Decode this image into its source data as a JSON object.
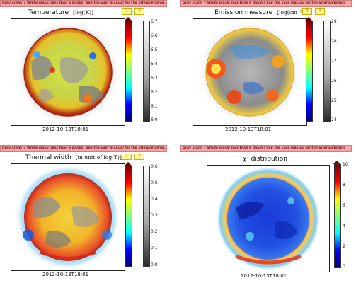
{
  "banner_text": "Gray scale: √  White mask: less than 6 bands! See the user manual for the interpretation.",
  "date": "2012-10-13T18:01",
  "tag_label": "?",
  "colors": {
    "banner_bg": "#f4a7a7",
    "tag_bg": "#fff59a",
    "jet_gradient": [
      "#000080",
      "#0000ff",
      "#00ffff",
      "#7fff7f",
      "#ffff00",
      "#ff0000",
      "#7f0000"
    ],
    "gray_gradient": [
      "#ffffff",
      "#a8a8a8",
      "#2a2a2a"
    ]
  },
  "panels": {
    "temperature": {
      "title": "Temperature",
      "unit": "[log(K)]",
      "ticks": [
        "6.7",
        "6.6",
        "6.5",
        "6.4",
        "6.3",
        "6.2",
        "6.1",
        "6.0"
      ]
    },
    "emission": {
      "title": "Emission measure",
      "unit": "[log(cm⁻⁵)]",
      "ticks": [
        "29",
        "28",
        "27",
        "26",
        "25",
        "24"
      ]
    },
    "thermal": {
      "title": "Thermal width",
      "unit": "[in unit of log(T)]",
      "ticks": [
        "0.6",
        "0.5",
        "0.4",
        "0.3",
        "0.2",
        "0.1",
        "0.0"
      ]
    },
    "chi2": {
      "title": "χ²  distribution",
      "unit": "",
      "ticks": [
        "10",
        "8",
        "6",
        "4",
        "2",
        "0"
      ]
    }
  },
  "chart_data": [
    {
      "type": "heatmap",
      "title": "Temperature [log(K)]",
      "colorbar_range": [
        6.0,
        6.7
      ],
      "colormap": "jet",
      "secondary_colorbar": "gray",
      "date": "2012-10-13T18:01"
    },
    {
      "type": "heatmap",
      "title": "Emission measure [log(cm⁻⁵)]",
      "colorbar_range": [
        24,
        29
      ],
      "colormap": "jet",
      "secondary_colorbar": "gray",
      "date": "2012-10-13T18:01"
    },
    {
      "type": "heatmap",
      "title": "Thermal width [in unit of log(T)]",
      "colorbar_range": [
        0.0,
        0.6
      ],
      "colormap": "jet",
      "secondary_colorbar": "gray",
      "date": "2012-10-13T18:01"
    },
    {
      "type": "heatmap",
      "title": "χ² distribution",
      "colorbar_range": [
        0,
        10
      ],
      "colormap": "jet",
      "date": "2012-10-13T18:01"
    }
  ]
}
